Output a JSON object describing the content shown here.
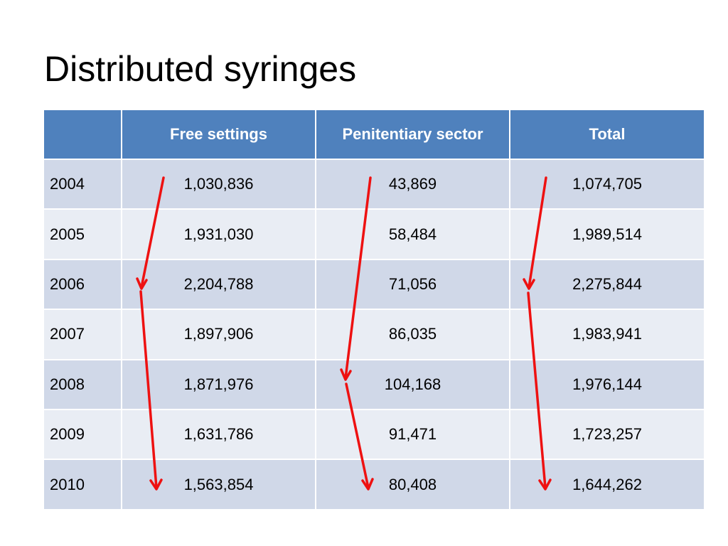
{
  "title": "Distributed syringes",
  "table": {
    "headers": [
      "",
      "Free settings",
      "Penitentiary sector",
      "Total"
    ],
    "rows": [
      {
        "year": "2004",
        "free": "1,030,836",
        "penitentiary": "43,869",
        "total": "1,074,705"
      },
      {
        "year": "2005",
        "free": "1,931,030",
        "penitentiary": "58,484",
        "total": "1,989,514"
      },
      {
        "year": "2006",
        "free": "2,204,788",
        "penitentiary": "71,056",
        "total": "2,275,844"
      },
      {
        "year": "2007",
        "free": "1,897,906",
        "penitentiary": "86,035",
        "total": "1,983,941"
      },
      {
        "year": "2008",
        "free": "1,871,976",
        "penitentiary": "104,168",
        "total": "1,976,144"
      },
      {
        "year": "2009",
        "free": "1,631,786",
        "penitentiary": "91,471",
        "total": "1,723,257"
      },
      {
        "year": "2010",
        "free": "1,563,854",
        "penitentiary": "80,408",
        "total": "1,644,262"
      }
    ]
  },
  "annotations": {
    "arrow_color": "#ee1111",
    "header_color": "#4f81bd",
    "row_odd_color": "#d0d8e8",
    "row_even_color": "#e9edf4",
    "trend_arrows": [
      {
        "column": "free",
        "from_year": "2004",
        "to_year": "2006",
        "direction": "up"
      },
      {
        "column": "free",
        "from_year": "2006",
        "to_year": "2010",
        "direction": "down"
      },
      {
        "column": "penitentiary",
        "from_year": "2004",
        "to_year": "2008",
        "direction": "up"
      },
      {
        "column": "penitentiary",
        "from_year": "2008",
        "to_year": "2010",
        "direction": "down"
      },
      {
        "column": "total",
        "from_year": "2004",
        "to_year": "2006",
        "direction": "up"
      },
      {
        "column": "total",
        "from_year": "2006",
        "to_year": "2010",
        "direction": "down"
      }
    ]
  }
}
